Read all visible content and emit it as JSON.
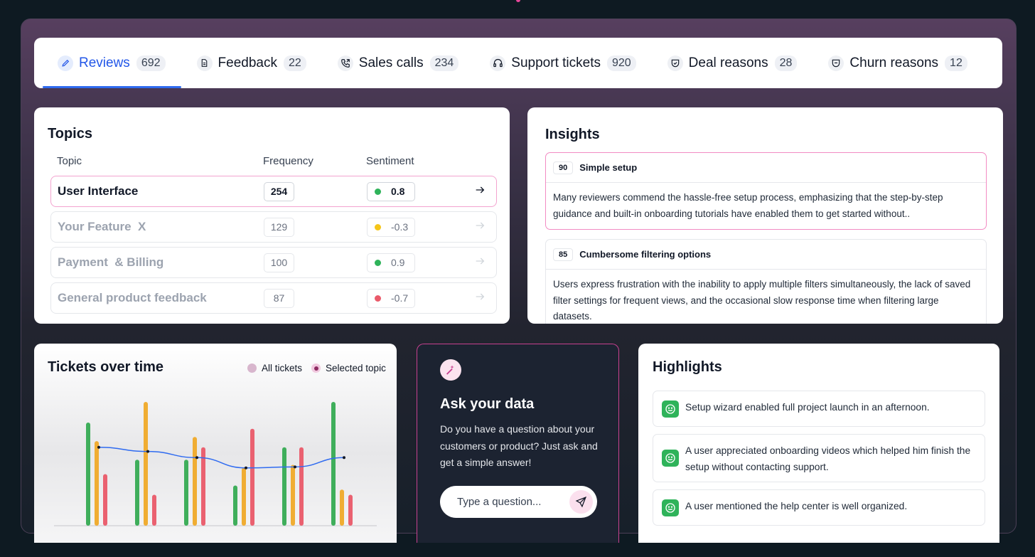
{
  "tabs": [
    {
      "label": "Reviews",
      "count": "692",
      "icon": "pencil-icon"
    },
    {
      "label": "Feedback",
      "count": "22",
      "icon": "document-icon"
    },
    {
      "label": "Sales calls",
      "count": "234",
      "icon": "phone-call-icon"
    },
    {
      "label": "Support tickets",
      "count": "920",
      "icon": "headset-icon"
    },
    {
      "label": "Deal reasons",
      "count": "28",
      "icon": "shield-check-icon"
    },
    {
      "label": "Churn reasons",
      "count": "12",
      "icon": "shield-minus-icon"
    }
  ],
  "topics": {
    "title": "Topics",
    "columns": {
      "topic": "Topic",
      "frequency": "Frequency",
      "sentiment": "Sentiment"
    },
    "rows": [
      {
        "name": "User Interface",
        "frequency": "254",
        "sentiment": "0.8",
        "color": "#2fb35a"
      },
      {
        "name": "Your Feature  X",
        "frequency": "129",
        "sentiment": "-0.3",
        "color": "#f5c518"
      },
      {
        "name": "Payment  & Billing",
        "frequency": "100",
        "sentiment": "0.9",
        "color": "#2fb35a"
      },
      {
        "name": "General product feedback",
        "frequency": "87",
        "sentiment": "-0.7",
        "color": "#ea5a6a"
      }
    ]
  },
  "insights": {
    "title": "Insights",
    "items": [
      {
        "score": "90",
        "title": "Simple setup",
        "body": "Many reviewers commend the hassle-free setup process, emphasizing that the step-by-step guidance and built-in onboarding tutorials have enabled them to get started without.."
      },
      {
        "score": "85",
        "title": "Cumbersome filtering options",
        "body": "Users express frustration with the inability to apply multiple filters simultaneously, the lack of saved filter settings for frequent views, and the occasional slow response time when filtering large datasets."
      }
    ]
  },
  "tickets": {
    "title": "Tickets over time",
    "legend": {
      "all": "All tickets",
      "selected": "Selected topic"
    }
  },
  "chart_data": {
    "type": "bar",
    "title": "Tickets over time",
    "series": [
      {
        "color": "#3fae5b",
        "values": [
          100,
          64,
          64,
          39,
          76,
          120
        ]
      },
      {
        "color": "#f0ad33",
        "values": [
          82,
          120,
          86,
          56,
          59,
          35
        ]
      },
      {
        "color": "#ea6170",
        "values": [
          50,
          30,
          76,
          94,
          76,
          30
        ]
      }
    ],
    "overlay_line": {
      "color": "#2f6bf0",
      "values": [
        76,
        72,
        66,
        56,
        57,
        66
      ]
    },
    "ylim": [
      0,
      120
    ]
  },
  "ask": {
    "title": "Ask your data",
    "description": "Do you have a question about your customers or product? Just ask and get a simple answer!",
    "placeholder": "Type a question..."
  },
  "highlights": {
    "title": "Highlights",
    "items": [
      "Setup wizard enabled full project launch in an afternoon.",
      "A user appreciated onboarding videos which helped him finish the setup without contacting support.",
      "A user mentioned the help center is well organized."
    ]
  },
  "colors": {
    "accent": "#2357e8",
    "pink": "#e8479b",
    "positive": "#2fb35a"
  }
}
